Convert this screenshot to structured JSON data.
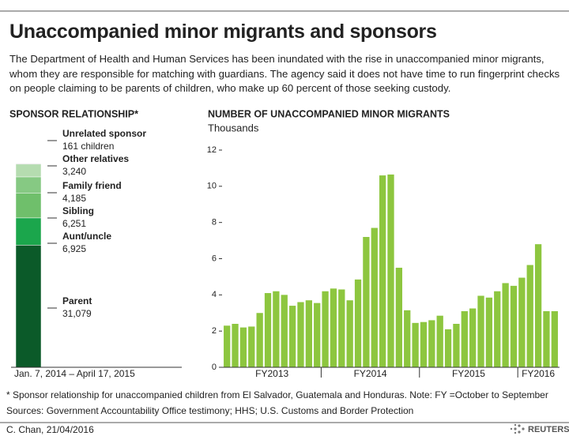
{
  "title": "Unaccompanied minor migrants and sponsors",
  "subtitle": "The Department of Health and Human Services has been inundated with the rise in unaccompanied minor migrants, whom they are responsible for matching with guardians. The agency said it does not have time to run fingerprint checks on people claiming to be parents of children, who make up 60 percent of those seeking custody.",
  "note": "* Sponsor relationship for unaccompanied children from El Salvador, Guatemala and Honduras. Note: FY =October to September",
  "sources": "Sources: Government Accountability Office testimony; HHS; U.S. Customs and Border Protection",
  "credit": "C. Chan, 21/04/2016",
  "logo": "REUTERS",
  "chart_data": [
    {
      "type": "stacked_bar",
      "title": "SPONSOR RELATIONSHIP*",
      "xlabel": "Jan. 7, 2014 – April 17, 2015",
      "series": [
        {
          "name": "Parent",
          "color": "#0b5a29",
          "values": [
            31079
          ],
          "value_labels": [
            "31,079"
          ]
        },
        {
          "name": "Aunt/uncle",
          "color": "#1ba64c",
          "values": [
            6925
          ],
          "value_labels": [
            "6,925"
          ]
        },
        {
          "name": "Sibling",
          "color": "#6fbf6b",
          "values": [
            6251
          ],
          "value_labels": [
            "6,251"
          ]
        },
        {
          "name": "Family friend",
          "color": "#86c983",
          "values": [
            4185
          ],
          "value_labels": [
            "4,185"
          ]
        },
        {
          "name": "Other relatives",
          "color": "#b5dcb0",
          "values": [
            3240
          ],
          "value_labels": [
            "3,240"
          ]
        },
        {
          "name": "Unrelated sponsor",
          "color": "#bdbdbd",
          "values": [
            161
          ],
          "value_labels": [
            "161 children"
          ]
        }
      ]
    },
    {
      "type": "bar",
      "title": "NUMBER OF UNACCOMPANIED MINOR MIGRANTS",
      "ylabel": "Thousands",
      "color": "#8dc63f",
      "values": [
        2.3,
        2.4,
        2.2,
        2.25,
        3.0,
        4.1,
        4.2,
        4.0,
        3.4,
        3.6,
        3.7,
        3.55,
        4.2,
        4.35,
        4.3,
        3.7,
        4.85,
        7.2,
        7.7,
        10.6,
        10.65,
        5.5,
        3.15,
        2.45,
        2.5,
        2.6,
        2.85,
        2.1,
        2.4,
        3.1,
        3.25,
        3.95,
        3.85,
        4.2,
        4.65,
        4.5,
        4.95,
        5.65,
        6.8,
        3.1,
        3.1
      ],
      "xgroups": [
        {
          "label": "FY2013",
          "size": 12
        },
        {
          "label": "FY2014",
          "size": 12
        },
        {
          "label": "FY2015",
          "size": 12
        },
        {
          "label": "FY2016",
          "size": 5
        }
      ],
      "ylim": [
        0,
        12
      ],
      "yticks": [
        0,
        2,
        4,
        6,
        8,
        10,
        12
      ]
    }
  ]
}
